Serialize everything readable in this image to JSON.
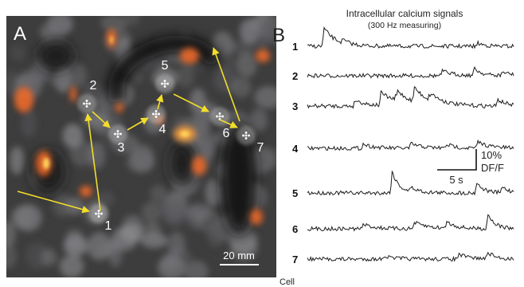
{
  "panel_a": {
    "letter": "A",
    "cells": [
      {
        "label": "1"
      },
      {
        "label": "2"
      },
      {
        "label": "3"
      },
      {
        "label": "4"
      },
      {
        "label": "5"
      },
      {
        "label": "6"
      },
      {
        "label": "7"
      }
    ],
    "scale_bar_label": "20 mm"
  },
  "panel_b": {
    "letter": "B",
    "title": "Intracellular calcium signals",
    "subtitle": "(300 Hz measuring)",
    "trace_labels": [
      "1",
      "2",
      "3",
      "4",
      "5",
      "6",
      "7"
    ],
    "time_scale_label": "5 s",
    "amplitude_scale_label": "10%",
    "amplitude_unit_label": "DF/F",
    "footer_label": "Cell"
  },
  "colors": {
    "arrow": "#f2de2a",
    "background": "#3d3d3d",
    "fluorescence": "#ee6a2a",
    "trace": "#1c1c1c"
  }
}
